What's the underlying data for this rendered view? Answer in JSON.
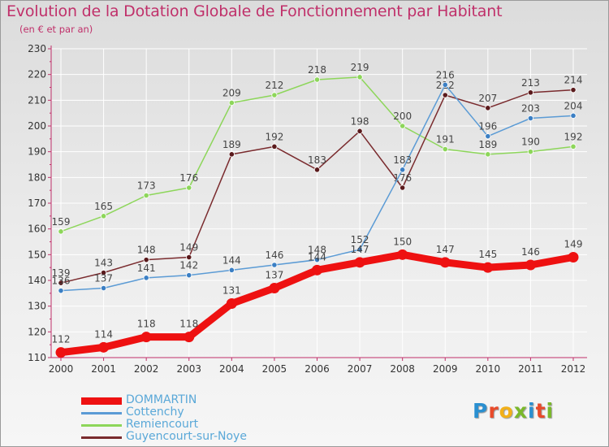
{
  "title": "Evolution de la Dotation Globale de Fonctionnement par Habitant",
  "subtitle": "(en € et par an)",
  "logo": {
    "text": "Proxiti",
    "letter_colors": [
      "#2a8fd0",
      "#e84a2a",
      "#f2b019",
      "#7ab82b",
      "#2a8fd0",
      "#e84a2a",
      "#7ab82b"
    ]
  },
  "colors": {
    "title": "#c0306a",
    "axis": "#c0306a",
    "grid": "#ffffff",
    "legend_text": "#5aa8d8"
  },
  "chart_data": {
    "type": "line",
    "title": "Evolution de la Dotation Globale de Fonctionnement par Habitant",
    "subtitle": "(en € et par an)",
    "xlabel": "",
    "ylabel": "",
    "x": [
      2000,
      2001,
      2002,
      2003,
      2004,
      2005,
      2006,
      2007,
      2008,
      2009,
      2010,
      2011,
      2012
    ],
    "ylim": [
      110,
      230
    ],
    "ytick_step": 10,
    "grid": true,
    "legend_position": "bottom-left",
    "series": [
      {
        "name": "Remiencourt",
        "color": "#8dd65a",
        "point_color": "#8dd65a",
        "width": "thin",
        "values": [
          159,
          165,
          173,
          176,
          209,
          212,
          218,
          219,
          200,
          191,
          189,
          190,
          192
        ]
      },
      {
        "name": "Guyencourt-sur-Noye",
        "color": "#7a2b2e",
        "point_color": "#5a1a1c",
        "width": "thin",
        "values": [
          139,
          143,
          148,
          149,
          189,
          192,
          183,
          198,
          176,
          212,
          207,
          213,
          214
        ]
      },
      {
        "name": "Cottenchy",
        "color": "#5b9bd5",
        "point_color": "#3b7fc4",
        "width": "thin",
        "values": [
          136,
          137,
          141,
          142,
          144,
          146,
          148,
          152,
          183,
          216,
          196,
          203,
          204
        ]
      },
      {
        "name": "DOMMARTIN",
        "color": "#ee1111",
        "point_color": "#ee1111",
        "width": "thick",
        "values": [
          112,
          114,
          118,
          118,
          131,
          137,
          144,
          147,
          150,
          147,
          145,
          146,
          149
        ]
      }
    ]
  },
  "legend": [
    {
      "name": "DOMMARTIN",
      "color": "#ee1111",
      "thick": true
    },
    {
      "name": "Cottenchy",
      "color": "#5b9bd5",
      "thick": false
    },
    {
      "name": "Remiencourt",
      "color": "#8dd65a",
      "thick": false
    },
    {
      "name": "Guyencourt-sur-Noye",
      "color": "#7a2b2e",
      "thick": false
    }
  ]
}
